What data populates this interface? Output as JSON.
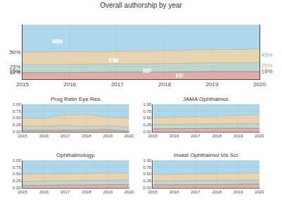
{
  "chart_data": [
    {
      "type": "area",
      "stacked": true,
      "grid": true,
      "title": "Overall authorship by year",
      "x": [
        2015,
        2016,
        2017,
        2018,
        2019,
        2020
      ],
      "series": [
        {
          "name": "FF",
          "color": "#c06050",
          "values": [
            0.12,
            0.12,
            0.13,
            0.13,
            0.14,
            0.14
          ]
        },
        {
          "name": "MF",
          "color": "#80b0a8",
          "values": [
            0.15,
            0.15,
            0.15,
            0.155,
            0.16,
            0.16
          ]
        },
        {
          "name": "FM",
          "color": "#d4a868",
          "values": [
            0.23,
            0.235,
            0.235,
            0.24,
            0.245,
            0.25
          ]
        },
        {
          "name": "MM",
          "color": "#60b0d8",
          "values": [
            0.5,
            0.495,
            0.485,
            0.475,
            0.455,
            0.45
          ]
        }
      ],
      "xlim": [
        2015,
        2020
      ],
      "xticks": [
        2015,
        2016,
        2017,
        2018,
        2019,
        2020
      ],
      "ylim": [
        0,
        1
      ],
      "yticks": [
        {
          "value": 0.12,
          "label": "12%"
        },
        {
          "value": 0.15,
          "label": "15%"
        },
        {
          "value": 0.23,
          "label": "23%"
        },
        {
          "value": 0.5,
          "label": "50%"
        }
      ],
      "y2lim": [
        0,
        1
      ],
      "y2ticks": [
        {
          "value": 0.14,
          "label": "14%"
        },
        {
          "value": 0.16,
          "label": "16%"
        },
        {
          "value": 0.25,
          "label": "25%"
        },
        {
          "value": 0.45,
          "label": "45%"
        }
      ],
      "annotations": [
        {
          "text": "MM",
          "x": 2015.6,
          "y": 0.7
        },
        {
          "text": "FM",
          "x": 2016.8,
          "y": 0.345
        },
        {
          "text": "MF",
          "x": 2017.5,
          "y": 0.155
        },
        {
          "text": "FF",
          "x": 2018.2,
          "y": 0.068
        }
      ]
    },
    {
      "type": "area",
      "stacked": true,
      "grid": true,
      "title": "Prog Retin Eye Res.",
      "x": [
        2015,
        2016,
        2017,
        2018,
        2019,
        2020
      ],
      "series": [
        {
          "name": "FF",
          "color": "#c06050",
          "values": [
            0.05,
            0.05,
            0.06,
            0.06,
            0.07,
            0.02
          ]
        },
        {
          "name": "MF",
          "color": "#80b0a8",
          "values": [
            0.15,
            0.14,
            0.15,
            0.12,
            0.13,
            0.14
          ]
        },
        {
          "name": "FM",
          "color": "#d4a868",
          "values": [
            0.3,
            0.3,
            0.4,
            0.45,
            0.33,
            0.35
          ]
        },
        {
          "name": "MM",
          "color": "#60b0d8",
          "values": [
            0.5,
            0.51,
            0.39,
            0.37,
            0.47,
            0.49
          ]
        }
      ],
      "xlim": [
        2015,
        2020
      ],
      "xticks": [
        2015,
        2016,
        2017,
        2018,
        2019,
        2020
      ],
      "ylim": [
        0,
        1
      ],
      "yticks": [
        {
          "value": 0,
          "label": "0.00"
        },
        {
          "value": 0.25,
          "label": "0.25"
        },
        {
          "value": 0.5,
          "label": "0.50"
        },
        {
          "value": 0.75,
          "label": "0.75"
        },
        {
          "value": 1,
          "label": "1.00"
        }
      ]
    },
    {
      "type": "area",
      "stacked": true,
      "grid": true,
      "title": "JAMA Ophthalmol.",
      "x": [
        2015,
        2016,
        2017,
        2018,
        2019,
        2020
      ],
      "series": [
        {
          "name": "FF",
          "color": "#c06050",
          "values": [
            0.1,
            0.1,
            0.11,
            0.12,
            0.12,
            0.12
          ]
        },
        {
          "name": "MF",
          "color": "#80b0a8",
          "values": [
            0.16,
            0.17,
            0.17,
            0.17,
            0.18,
            0.18
          ]
        },
        {
          "name": "FM",
          "color": "#d4a868",
          "values": [
            0.26,
            0.26,
            0.27,
            0.28,
            0.3,
            0.32
          ]
        },
        {
          "name": "MM",
          "color": "#60b0d8",
          "values": [
            0.48,
            0.47,
            0.45,
            0.43,
            0.4,
            0.38
          ]
        }
      ],
      "xlim": [
        2015,
        2020
      ],
      "xticks": [
        2015,
        2016,
        2017,
        2018,
        2019,
        2020
      ],
      "ylim": [
        0,
        1
      ],
      "yticks": [
        {
          "value": 0,
          "label": "0.00"
        },
        {
          "value": 0.25,
          "label": "0.25"
        },
        {
          "value": 0.5,
          "label": "0.50"
        },
        {
          "value": 0.75,
          "label": "0.75"
        },
        {
          "value": 1,
          "label": "1.00"
        }
      ]
    },
    {
      "type": "area",
      "stacked": true,
      "grid": true,
      "title": "Ophthalmology.",
      "x": [
        2015,
        2016,
        2017,
        2018,
        2019,
        2020
      ],
      "series": [
        {
          "name": "FF",
          "color": "#c06050",
          "values": [
            0.08,
            0.09,
            0.09,
            0.1,
            0.1,
            0.11
          ]
        },
        {
          "name": "MF",
          "color": "#80b0a8",
          "values": [
            0.15,
            0.15,
            0.16,
            0.16,
            0.17,
            0.17
          ]
        },
        {
          "name": "FM",
          "color": "#d4a868",
          "values": [
            0.27,
            0.27,
            0.27,
            0.27,
            0.27,
            0.27
          ]
        },
        {
          "name": "MM",
          "color": "#60b0d8",
          "values": [
            0.5,
            0.49,
            0.48,
            0.47,
            0.46,
            0.45
          ]
        }
      ],
      "xlim": [
        2015,
        2020
      ],
      "xticks": [
        2015,
        2016,
        2017,
        2018,
        2019,
        2020
      ],
      "ylim": [
        0,
        1
      ],
      "yticks": [
        {
          "value": 0,
          "label": "0.00"
        },
        {
          "value": 0.25,
          "label": "0.25"
        },
        {
          "value": 0.5,
          "label": "0.50"
        },
        {
          "value": 0.75,
          "label": "0.75"
        },
        {
          "value": 1,
          "label": "1.00"
        }
      ]
    },
    {
      "type": "area",
      "stacked": true,
      "grid": true,
      "title": "Invest Ophthalmol Vis Sci.",
      "x": [
        2015,
        2016,
        2017,
        2018,
        2019,
        2020
      ],
      "series": [
        {
          "name": "FF",
          "color": "#c06050",
          "values": [
            0.1,
            0.1,
            0.11,
            0.11,
            0.12,
            0.13
          ]
        },
        {
          "name": "MF",
          "color": "#80b0a8",
          "values": [
            0.14,
            0.14,
            0.15,
            0.15,
            0.15,
            0.16
          ]
        },
        {
          "name": "FM",
          "color": "#d4a868",
          "values": [
            0.25,
            0.25,
            0.25,
            0.26,
            0.26,
            0.26
          ]
        },
        {
          "name": "MM",
          "color": "#60b0d8",
          "values": [
            0.51,
            0.51,
            0.49,
            0.48,
            0.47,
            0.45
          ]
        }
      ],
      "xlim": [
        2015,
        2020
      ],
      "xticks": [
        2015,
        2016,
        2017,
        2018,
        2019,
        2020
      ],
      "ylim": [
        0,
        1
      ],
      "yticks": [
        {
          "value": 0,
          "label": "0.00"
        },
        {
          "value": 0.25,
          "label": "0.25"
        },
        {
          "value": 0.5,
          "label": "0.50"
        },
        {
          "value": 0.75,
          "label": "0.75"
        },
        {
          "value": 1,
          "label": "1.00"
        }
      ]
    }
  ]
}
